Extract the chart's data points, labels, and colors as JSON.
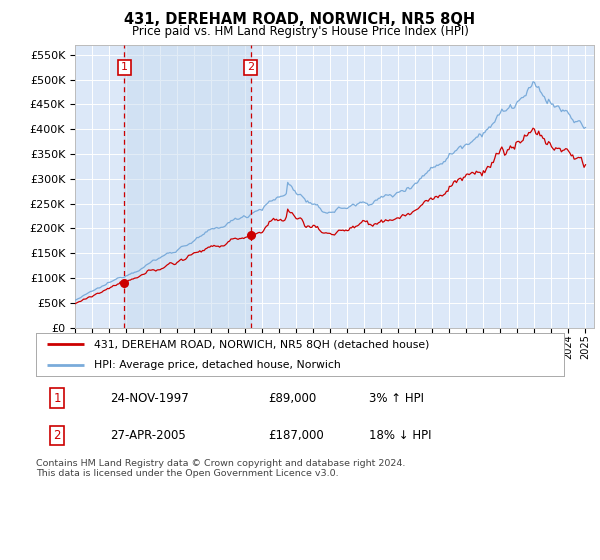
{
  "title": "431, DEREHAM ROAD, NORWICH, NR5 8QH",
  "subtitle": "Price paid vs. HM Land Registry's House Price Index (HPI)",
  "ylabel_ticks": [
    "£0",
    "£50K",
    "£100K",
    "£150K",
    "£200K",
    "£250K",
    "£300K",
    "£350K",
    "£400K",
    "£450K",
    "£500K",
    "£550K"
  ],
  "ytick_values": [
    0,
    50000,
    100000,
    150000,
    200000,
    250000,
    300000,
    350000,
    400000,
    450000,
    500000,
    550000
  ],
  "ylim": [
    0,
    570000
  ],
  "xlim_start": 1995.0,
  "xlim_end": 2025.5,
  "plot_bg_color": "#dce8f8",
  "grid_color": "#ffffff",
  "transaction1_x": 1997.9,
  "transaction1_y": 89000,
  "transaction2_x": 2005.33,
  "transaction2_y": 187000,
  "red_line_label": "431, DEREHAM ROAD, NORWICH, NR5 8QH (detached house)",
  "blue_line_label": "HPI: Average price, detached house, Norwich",
  "footer": "Contains HM Land Registry data © Crown copyright and database right 2024.\nThis data is licensed under the Open Government Licence v3.0.",
  "red_color": "#cc0000",
  "blue_color": "#7aabda",
  "transaction1_date": "24-NOV-1997",
  "transaction1_price": "£89,000",
  "transaction1_hpi": "3% ↑ HPI",
  "transaction2_date": "27-APR-2005",
  "transaction2_price": "£187,000",
  "transaction2_hpi": "18% ↓ HPI"
}
